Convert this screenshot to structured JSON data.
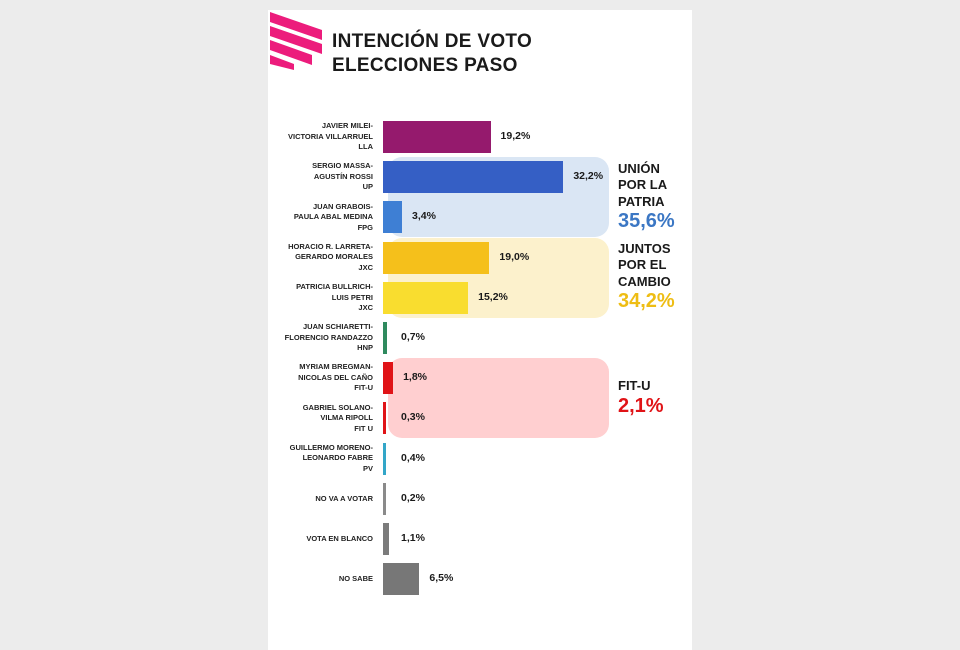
{
  "title_lines": [
    "INTENCIÓN DE VOTO",
    "ELECCIONES PASO"
  ],
  "chart_data": {
    "type": "bar",
    "orientation": "horizontal",
    "title": "INTENCIÓN DE VOTO ELECCIONES PASO",
    "unit": "%",
    "bars": [
      {
        "label": [
          "JAVIER MILEI-",
          "VICTORIA VILLARRUEL",
          "LLA"
        ],
        "value": 19.2,
        "value_text": "19,2%",
        "color": "#951a6d"
      },
      {
        "label": [
          "SERGIO MASSA-",
          "AGUSTÍN ROSSI",
          "UP"
        ],
        "value": 32.2,
        "value_text": "32,2%",
        "color": "#355fc5"
      },
      {
        "label": [
          "JUAN GRABOIS-",
          "PAULA ABAL MEDINA",
          "FPG"
        ],
        "value": 3.4,
        "value_text": "3,4%",
        "color": "#3e7fd4"
      },
      {
        "label": [
          "HORACIO R. LARRETA-",
          "GERARDO MORALES",
          "JXC"
        ],
        "value": 19.0,
        "value_text": "19,0%",
        "color": "#f5c01b"
      },
      {
        "label": [
          "PATRICIA BULLRICH-",
          "LUIS PETRI",
          "JXC"
        ],
        "value": 15.2,
        "value_text": "15,2%",
        "color": "#f9dd2f"
      },
      {
        "label": [
          "JUAN SCHIARETTI-",
          "FLORENCIO RANDAZZO",
          "HNP"
        ],
        "value": 0.7,
        "value_text": "0,7%",
        "color": "#2f8a5e"
      },
      {
        "label": [
          "MYRIAM BREGMAN-",
          "NICOLAS DEL CAÑO",
          "FIT-U"
        ],
        "value": 1.8,
        "value_text": "1,8%",
        "color": "#e01317"
      },
      {
        "label": [
          "GABRIEL SOLANO-",
          "VILMA RIPOLL",
          "FIT U"
        ],
        "value": 0.3,
        "value_text": "0,3%",
        "color": "#e01317"
      },
      {
        "label": [
          "GUILLERMO MORENO-",
          "LEONARDO FABRE",
          "PV"
        ],
        "value": 0.4,
        "value_text": "0,4%",
        "color": "#33a6c8"
      },
      {
        "label": [
          "NO VA A VOTAR"
        ],
        "value": 0.2,
        "value_text": "0,2%",
        "color": "#8a8a8a"
      },
      {
        "label": [
          "VOTA EN BLANCO"
        ],
        "value": 1.1,
        "value_text": "1,1%",
        "color": "#7b7b7b"
      },
      {
        "label": [
          "NO SABE"
        ],
        "value": 6.5,
        "value_text": "6,5%",
        "color": "#777777"
      }
    ],
    "groups": [
      {
        "name": [
          "UNIÓN",
          "POR LA",
          "PATRIA"
        ],
        "total": 35.6,
        "total_text": "35,6%",
        "bars": [
          1,
          2
        ],
        "box_color": "#dae6f4",
        "total_color": "#3b77c4"
      },
      {
        "name": [
          "JUNTOS",
          "POR EL",
          "CAMBIO"
        ],
        "total": 34.2,
        "total_text": "34,2%",
        "bars": [
          3,
          4
        ],
        "box_color": "#fcf1cc",
        "total_color": "#eebd14"
      },
      {
        "name": [
          "FIT-U"
        ],
        "total": 2.1,
        "total_text": "2,1%",
        "bars": [
          6,
          7
        ],
        "box_color": "#ffcfd0",
        "total_color": "#e01317"
      }
    ]
  },
  "colors": {
    "logo": "#ec1c7c",
    "title": "#1a1a1a"
  }
}
